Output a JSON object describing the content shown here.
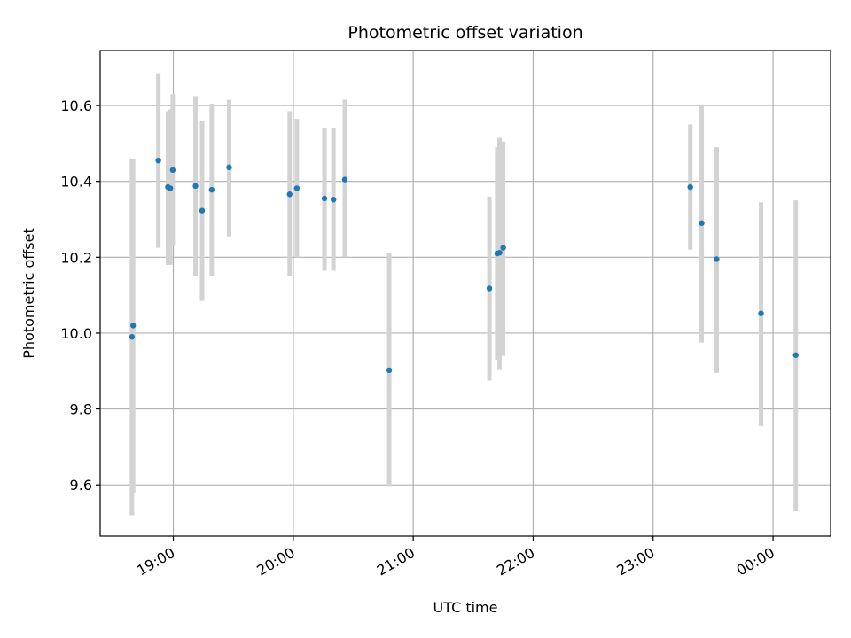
{
  "chart_data": {
    "type": "scatter",
    "title": "Photometric offset variation",
    "xlabel": "UTC time",
    "ylabel": "Photometric offset",
    "x_unit": "hours since 00:00 UTC of first day",
    "xlim": [
      18.39,
      24.48
    ],
    "ylim": [
      9.465,
      10.745
    ],
    "grid": true,
    "x_ticks": [
      {
        "value": 19,
        "label": "19:00"
      },
      {
        "value": 20,
        "label": "20:00"
      },
      {
        "value": 21,
        "label": "21:00"
      },
      {
        "value": 22,
        "label": "22:00"
      },
      {
        "value": 23,
        "label": "23:00"
      },
      {
        "value": 24,
        "label": "00:00"
      }
    ],
    "y_ticks": [
      {
        "value": 9.6,
        "label": "9.6"
      },
      {
        "value": 9.8,
        "label": "9.8"
      },
      {
        "value": 10.0,
        "label": "10.0"
      },
      {
        "value": 10.2,
        "label": "10.2"
      },
      {
        "value": 10.4,
        "label": "10.4"
      },
      {
        "value": 10.6,
        "label": "10.6"
      }
    ],
    "colors": {
      "point": "#1f77b4",
      "errorbar": "#d3d3d3",
      "grid": "#b0b0b0"
    },
    "points": [
      {
        "x": 18.655,
        "y": 9.99,
        "low": 9.52,
        "high": 10.46
      },
      {
        "x": 18.665,
        "y": 10.02,
        "low": 9.58,
        "high": 10.46
      },
      {
        "x": 18.875,
        "y": 10.455,
        "low": 10.225,
        "high": 10.685
      },
      {
        "x": 18.955,
        "y": 10.385,
        "low": 10.18,
        "high": 10.585
      },
      {
        "x": 18.975,
        "y": 10.382,
        "low": 10.18,
        "high": 10.59
      },
      {
        "x": 18.995,
        "y": 10.43,
        "low": 10.23,
        "high": 10.63
      },
      {
        "x": 19.185,
        "y": 10.388,
        "low": 10.15,
        "high": 10.625
      },
      {
        "x": 19.24,
        "y": 10.323,
        "low": 10.085,
        "high": 10.56
      },
      {
        "x": 19.32,
        "y": 10.378,
        "low": 10.15,
        "high": 10.605
      },
      {
        "x": 19.465,
        "y": 10.437,
        "low": 10.255,
        "high": 10.615
      },
      {
        "x": 19.97,
        "y": 10.366,
        "low": 10.15,
        "high": 10.585
      },
      {
        "x": 20.03,
        "y": 10.382,
        "low": 10.2,
        "high": 10.565
      },
      {
        "x": 20.26,
        "y": 10.355,
        "low": 10.165,
        "high": 10.54
      },
      {
        "x": 20.335,
        "y": 10.352,
        "low": 10.165,
        "high": 10.54
      },
      {
        "x": 20.43,
        "y": 10.405,
        "low": 10.2,
        "high": 10.615
      },
      {
        "x": 20.8,
        "y": 9.902,
        "low": 9.595,
        "high": 10.21
      },
      {
        "x": 21.635,
        "y": 10.118,
        "low": 9.875,
        "high": 10.36
      },
      {
        "x": 21.7,
        "y": 10.21,
        "low": 9.93,
        "high": 10.49
      },
      {
        "x": 21.72,
        "y": 10.212,
        "low": 9.905,
        "high": 10.515
      },
      {
        "x": 21.75,
        "y": 10.225,
        "low": 9.94,
        "high": 10.505
      },
      {
        "x": 23.31,
        "y": 10.385,
        "low": 10.22,
        "high": 10.55
      },
      {
        "x": 23.405,
        "y": 10.29,
        "low": 9.975,
        "high": 10.6
      },
      {
        "x": 23.53,
        "y": 10.195,
        "low": 9.895,
        "high": 10.49
      },
      {
        "x": 23.9,
        "y": 10.052,
        "low": 9.755,
        "high": 10.345
      },
      {
        "x": 24.19,
        "y": 9.942,
        "low": 9.53,
        "high": 10.35
      }
    ]
  }
}
